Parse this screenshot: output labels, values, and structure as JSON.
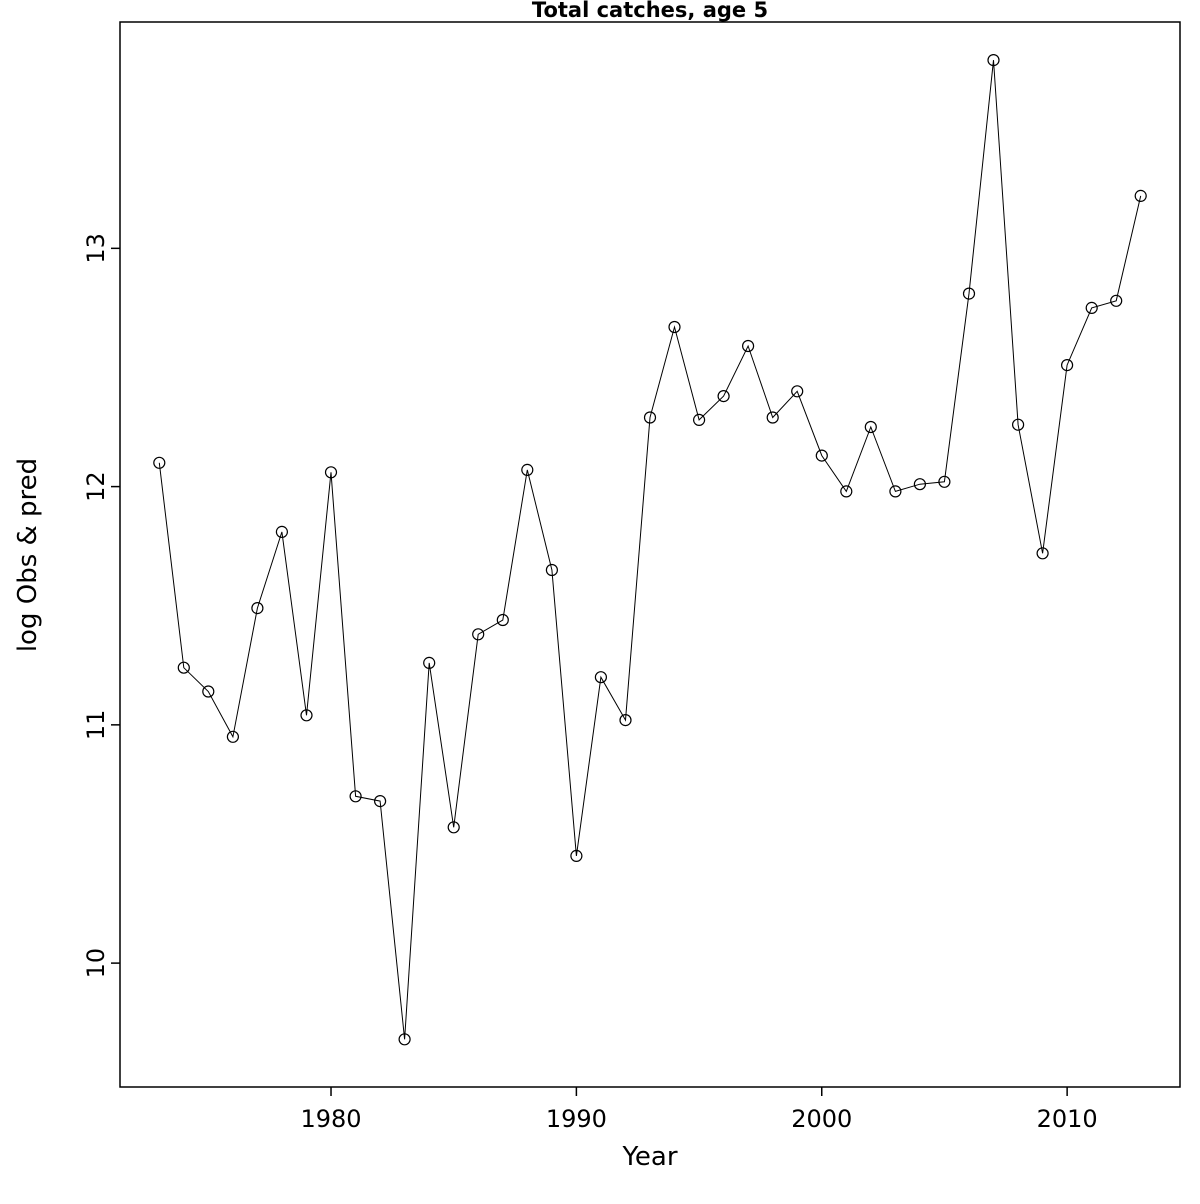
{
  "chart_data": {
    "type": "line",
    "title": "Total catches, age 5",
    "xlabel": "Year",
    "ylabel": "log Obs & pred",
    "x": [
      1973,
      1974,
      1975,
      1976,
      1977,
      1978,
      1979,
      1980,
      1981,
      1982,
      1983,
      1984,
      1985,
      1986,
      1987,
      1988,
      1989,
      1990,
      1991,
      1992,
      1993,
      1994,
      1995,
      1996,
      1997,
      1998,
      1999,
      2000,
      2001,
      2002,
      2003,
      2004,
      2005,
      2006,
      2007,
      2008,
      2009,
      2010,
      2011,
      2012,
      2013
    ],
    "y": [
      12.1,
      11.24,
      11.14,
      10.95,
      11.49,
      11.81,
      11.04,
      12.06,
      10.7,
      10.68,
      9.68,
      11.26,
      10.57,
      11.38,
      11.44,
      12.07,
      11.65,
      10.45,
      11.2,
      11.02,
      12.29,
      12.67,
      12.28,
      12.38,
      12.59,
      12.29,
      12.4,
      12.13,
      11.98,
      12.25,
      11.98,
      12.01,
      12.02,
      12.81,
      13.79,
      12.26,
      11.72,
      12.51,
      12.75,
      12.78,
      13.22
    ],
    "xlim": [
      1971.4,
      2014.6
    ],
    "ylim": [
      9.48,
      13.95
    ],
    "xticks": [
      1980,
      1990,
      2000,
      2010
    ],
    "yticks": [
      10,
      11,
      12,
      13
    ],
    "marker": "open-circle",
    "line_color": "#000000",
    "background_color": "#ffffff",
    "grid": false,
    "legend": false
  }
}
